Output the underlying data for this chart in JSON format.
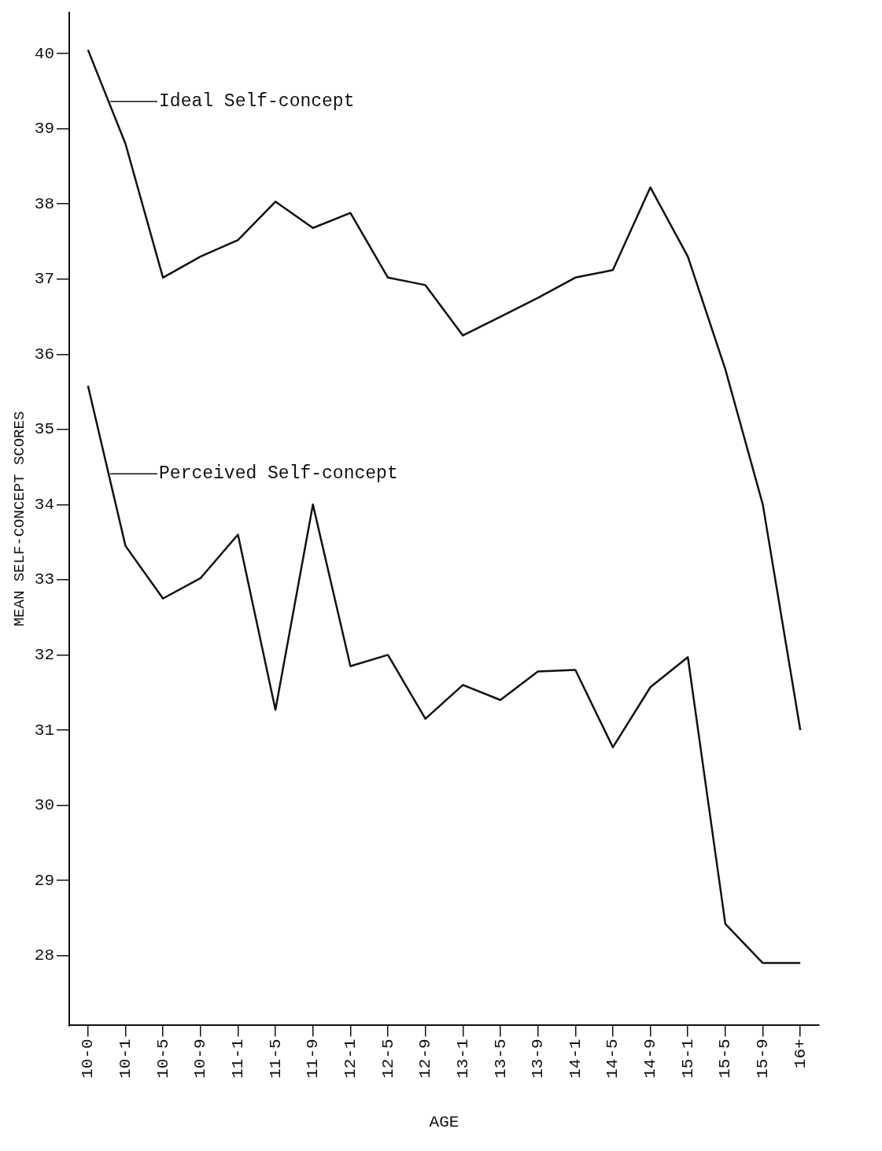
{
  "chart_data": {
    "type": "line",
    "xlabel": "AGE",
    "ylabel": "MEAN SELF-CONCEPT SCORES",
    "categories": [
      "10-0",
      "10-1",
      "10-5",
      "10-9",
      "11-1",
      "11-5",
      "11-9",
      "12-1",
      "12-5",
      "12-9",
      "13-1",
      "13-5",
      "13-9",
      "14-1",
      "14-5",
      "14-9",
      "15-1",
      "15-5",
      "15-9",
      "16+"
    ],
    "series": [
      {
        "name": "Ideal Self-concept",
        "color": "#111111",
        "values": [
          40.05,
          38.8,
          37.02,
          37.3,
          37.52,
          38.03,
          37.68,
          37.88,
          37.02,
          36.92,
          36.25,
          36.5,
          36.75,
          37.02,
          37.12,
          38.22,
          37.3,
          35.8,
          34.0,
          31.0
        ]
      },
      {
        "name": "Perceived Self-concept",
        "color": "#111111",
        "values": [
          35.58,
          33.45,
          32.75,
          33.02,
          33.6,
          31.27,
          34.0,
          31.85,
          32.0,
          31.15,
          31.6,
          31.4,
          31.78,
          31.8,
          30.77,
          31.57,
          31.97,
          28.42,
          27.9,
          27.9
        ]
      }
    ],
    "ylim": [
      27.07,
      40.55
    ],
    "yticks": [
      28,
      29,
      30,
      31,
      32,
      33,
      34,
      35,
      36,
      37,
      38,
      39,
      40
    ],
    "grid": false,
    "legend": "top left",
    "marker": "none",
    "line_style": "solid"
  }
}
